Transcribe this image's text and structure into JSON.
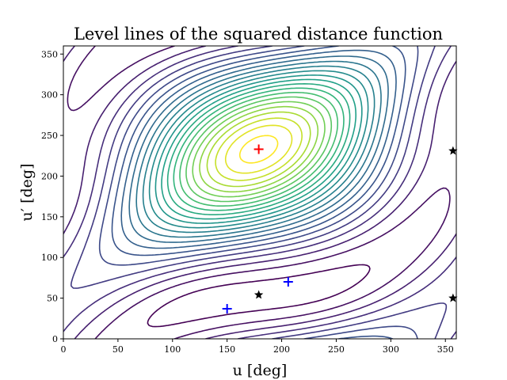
{
  "chart_data": {
    "type": "contour",
    "title": "Level lines of the squared distance function",
    "xlabel": "u [deg]",
    "ylabel": "u′ [deg]",
    "xlim": [
      0,
      360
    ],
    "ylim": [
      0,
      360
    ],
    "xticks": [
      0,
      50,
      100,
      150,
      200,
      250,
      300,
      350
    ],
    "yticks": [
      0,
      50,
      100,
      150,
      200,
      250,
      300,
      350
    ],
    "colormap": "viridis",
    "grid": false,
    "levels": 24,
    "global_max": {
      "u": 179,
      "u_prime": 233,
      "marker": "plus",
      "color": "#ff0000"
    },
    "blue_plus_points": [
      {
        "u": 150,
        "u_prime": 37
      },
      {
        "u": 206,
        "u_prime": 70
      }
    ],
    "black_star_points": [
      {
        "u": 179,
        "u_prime": 54
      },
      {
        "u": 357,
        "u_prime": 231
      },
      {
        "u": 357,
        "u_prime": 50
      }
    ],
    "colors": {
      "plus_red": "#ff0000",
      "plus_blue": "#0000ff",
      "star": "#000000"
    }
  }
}
